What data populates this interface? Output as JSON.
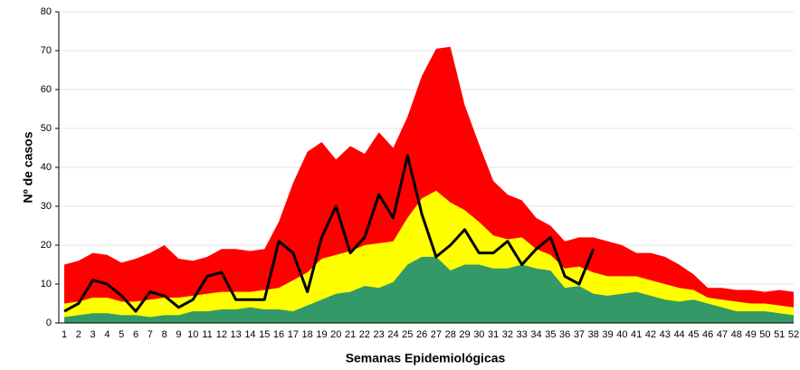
{
  "chart_data": {
    "type": "area",
    "xlabel": "Semanas Epidemiológicas",
    "ylabel": "Nº de casos",
    "categories": [
      "1",
      "2",
      "3",
      "4",
      "5",
      "6",
      "7",
      "8",
      "9",
      "10",
      "11",
      "12",
      "13",
      "14",
      "15",
      "16",
      "17",
      "18",
      "19",
      "20",
      "21",
      "22",
      "23",
      "24",
      "25",
      "26",
      "27",
      "28",
      "29",
      "30",
      "31",
      "32",
      "33",
      "34",
      "35",
      "36",
      "37",
      "38",
      "39",
      "40",
      "41",
      "42",
      "43",
      "44",
      "45",
      "46",
      "47",
      "48",
      "49",
      "50",
      "51",
      "52"
    ],
    "ylim": [
      0,
      80
    ],
    "yticks": [
      0,
      10,
      20,
      30,
      40,
      50,
      60,
      70,
      80
    ],
    "grid": true,
    "series": [
      {
        "name": null,
        "type": "area",
        "color": "#ff0000",
        "values": [
          15,
          16,
          18,
          17.5,
          15.5,
          16.5,
          18,
          20,
          16.5,
          16,
          17,
          19,
          19,
          18.5,
          19,
          26,
          36,
          44,
          46.5,
          42,
          45.5,
          43.5,
          49,
          45,
          53,
          63.5,
          70.5,
          71,
          56,
          46,
          36.5,
          33,
          31.5,
          27,
          25,
          21,
          22,
          22,
          21,
          20,
          18,
          18,
          17,
          15,
          12.5,
          9,
          9,
          8.5,
          8.5,
          8,
          8.5,
          8
        ]
      },
      {
        "name": null,
        "type": "area",
        "color": "#ffff00",
        "values": [
          5,
          5.5,
          6.5,
          6.5,
          5.5,
          5.5,
          6,
          6.5,
          6.5,
          7,
          7.5,
          8,
          8,
          8,
          8.5,
          9,
          11,
          13,
          16.5,
          17.5,
          18.5,
          20,
          20.5,
          21,
          27,
          32,
          34,
          31,
          29,
          26,
          22.5,
          21.5,
          22,
          19,
          17.5,
          14,
          14.5,
          13,
          12,
          12,
          12,
          11,
          10,
          9,
          8.5,
          6.5,
          6,
          5.5,
          5,
          5,
          4.5,
          4
        ]
      },
      {
        "name": null,
        "type": "area",
        "color": "#339966",
        "values": [
          1.5,
          2,
          2.5,
          2.5,
          2,
          2,
          1.5,
          2,
          2,
          3,
          3,
          3.5,
          3.5,
          4,
          3.5,
          3.5,
          3,
          4.5,
          6,
          7.5,
          8,
          9.5,
          9,
          10.5,
          15,
          17,
          17,
          13.5,
          15,
          15,
          14,
          14,
          15,
          14,
          13.5,
          9,
          9.5,
          7.5,
          7,
          7.5,
          8,
          7,
          6,
          5.5,
          6,
          5,
          4,
          3,
          3,
          3,
          2.5,
          2
        ]
      },
      {
        "name": null,
        "type": "line",
        "color": "#000000",
        "values": [
          3,
          5,
          11,
          10,
          7,
          3,
          8,
          7,
          4,
          6,
          12,
          13,
          6,
          6,
          6,
          21,
          18,
          8,
          22,
          30,
          18,
          22,
          33,
          27,
          43,
          28,
          17,
          20,
          24,
          18,
          18,
          21,
          15,
          19,
          22,
          12,
          10,
          19,
          null,
          null,
          null,
          null,
          null,
          null,
          null,
          null,
          null,
          null,
          null,
          null,
          null,
          null
        ]
      }
    ]
  }
}
